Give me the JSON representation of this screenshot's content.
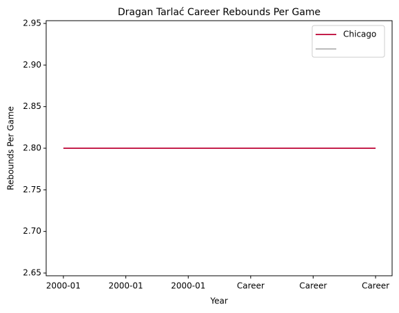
{
  "chart_data": {
    "type": "line",
    "title": "Dragan Tarlać Career Rebounds Per Game",
    "x_label": "Year",
    "y_label": "Rebounds Per Game",
    "categories": [
      "2000-01",
      "2000-01",
      "2000-01",
      "Career",
      "Career",
      "Career"
    ],
    "series": [
      {
        "name": "Chicago",
        "color": "#c41e4a",
        "values": [
          2.8,
          2.8,
          2.8,
          2.8,
          2.8,
          2.8
        ]
      },
      {
        "color": "#bbbbbb",
        "values": [
          2.8,
          2.8,
          2.8,
          2.8,
          2.8,
          2.8
        ]
      }
    ],
    "ylim": [
      2.6467,
      2.9533
    ],
    "yticks": [
      2.65,
      {
        "value": 2.7,
        "label": "2.70"
      },
      2.75,
      {
        "value": 2.8,
        "label": "2.80"
      },
      2.85,
      {
        "value": 2.9,
        "label": "2.90"
      },
      2.95
    ],
    "legend": "upper right",
    "grid": false
  }
}
